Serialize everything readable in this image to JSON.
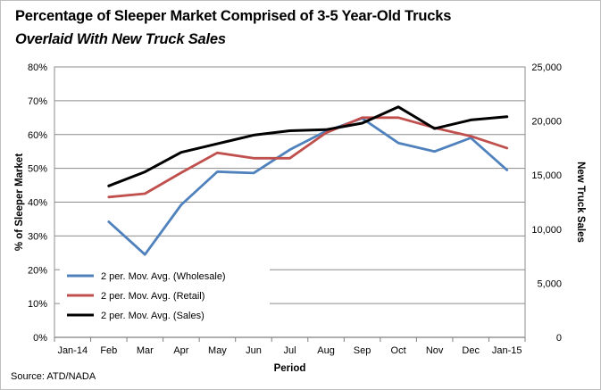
{
  "chart_data": {
    "type": "line",
    "title": "Percentage of Sleeper Market Comprised of 3-5 Year-Old Trucks",
    "subtitle": "Overlaid With New Truck Sales",
    "xlabel": "Period",
    "ylabel": "% of Sleeper Market",
    "y2label": "New Truck Sales",
    "categories": [
      "Jan-14",
      "Feb",
      "Mar",
      "Apr",
      "May",
      "Jun",
      "Jul",
      "Aug",
      "Sep",
      "Oct",
      "Nov",
      "Dec",
      "Jan-15"
    ],
    "ylim": [
      0,
      80
    ],
    "yticks": [
      "0%",
      "10%",
      "20%",
      "30%",
      "40%",
      "50%",
      "60%",
      "70%",
      "80%"
    ],
    "y2lim": [
      0,
      25000
    ],
    "y2ticks": [
      "0",
      "5,000",
      "10,000",
      "15,000",
      "20,000",
      "25,000"
    ],
    "series": [
      {
        "name": "2 per. Mov. Avg. (Wholesale)",
        "axis": "left",
        "color": "#4f81bd",
        "values": [
          null,
          34.2,
          24.5,
          39.2,
          49.0,
          48.6,
          55.5,
          61.0,
          64.8,
          57.5,
          55.0,
          59.0,
          49.5
        ]
      },
      {
        "name": "2 per. Mov. Avg. (Retail)",
        "axis": "left",
        "color": "#c0504d",
        "values": [
          null,
          41.5,
          42.5,
          48.7,
          54.6,
          53.0,
          53.0,
          60.5,
          65.0,
          65.0,
          62.0,
          59.5,
          56.0
        ]
      },
      {
        "name": "2 per. Mov. Avg. (Sales)",
        "axis": "right",
        "color": "#000000",
        "values": [
          null,
          14000,
          15300,
          17100,
          17900,
          18700,
          19100,
          19200,
          19800,
          21300,
          19300,
          20100,
          20400
        ]
      }
    ],
    "legend": "bottom-left",
    "grid": true,
    "source": "Source:  ATD/NADA"
  }
}
